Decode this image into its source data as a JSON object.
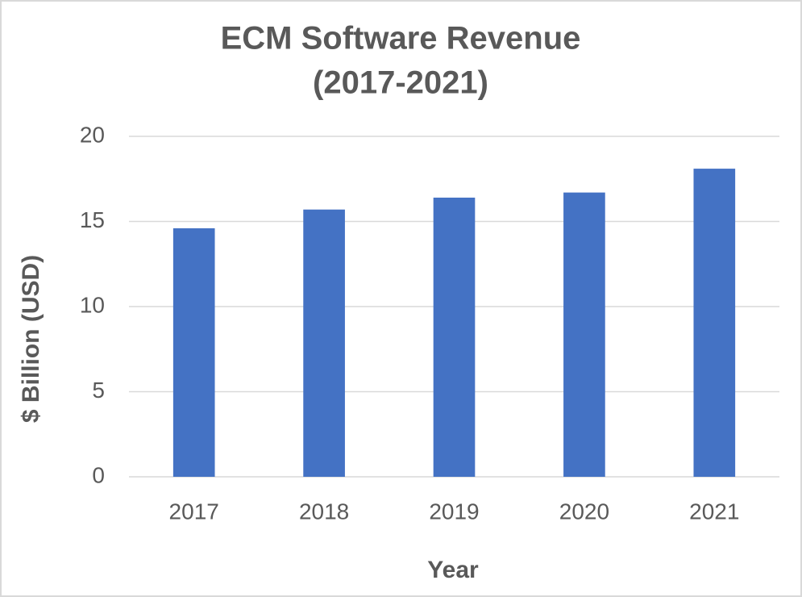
{
  "chart_data": {
    "type": "bar",
    "title": [
      "ECM Software Revenue",
      "(2017-2021)"
    ],
    "x_label": "Year",
    "y_label": "$ Billion (USD)",
    "categories": [
      "2017",
      "2018",
      "2019",
      "2020",
      "2021"
    ],
    "values": [
      14.6,
      15.7,
      16.4,
      16.7,
      18.1
    ],
    "color": "#4472c4",
    "ylim": [
      0,
      20
    ],
    "yticks": [
      0,
      5,
      10,
      15,
      20
    ],
    "grid": true
  }
}
